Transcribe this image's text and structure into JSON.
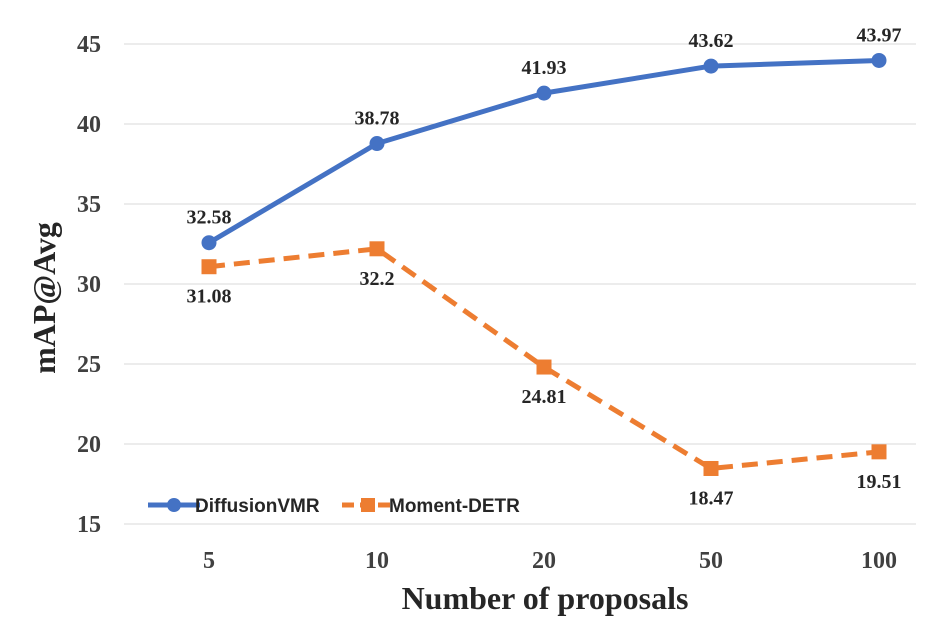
{
  "chart_data": {
    "type": "line",
    "categories": [
      "5",
      "10",
      "20",
      "50",
      "100"
    ],
    "xlabel": "Number of proposals",
    "ylabel": "mAP@Avg",
    "ylim": [
      15,
      45
    ],
    "yticks": [
      15,
      20,
      25,
      30,
      35,
      40,
      45
    ],
    "grid": true,
    "legend_position": "bottom-left",
    "series": [
      {
        "name": "DiffusionVMR",
        "values": [
          32.58,
          38.78,
          41.93,
          43.62,
          43.97
        ],
        "labels": [
          "32.58",
          "38.78",
          "41.93",
          "43.62",
          "43.97"
        ],
        "color": "#4472c4",
        "marker": "circle",
        "line_style": "solid"
      },
      {
        "name": "Moment-DETR",
        "values": [
          31.08,
          32.2,
          24.81,
          18.47,
          19.51
        ],
        "labels": [
          "31.08",
          "32.2",
          "24.81",
          "18.47",
          "19.51"
        ],
        "color": "#ed7d31",
        "marker": "square",
        "line_style": "dashed"
      }
    ]
  }
}
